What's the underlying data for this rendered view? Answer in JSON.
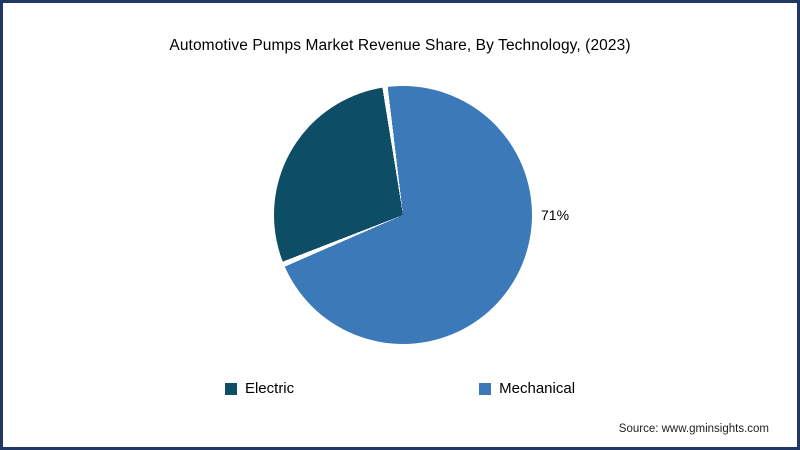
{
  "chart_data": {
    "type": "pie",
    "title": "Automotive Pumps Market Revenue Share, By Technology, (2023)",
    "start_angle_deg": -8,
    "slices": [
      {
        "label": "Mechanical",
        "value": 71,
        "color": "#3b79b8",
        "display_label": "71%"
      },
      {
        "label": "Electric",
        "value": 29,
        "color": "#0d4e66",
        "display_label": ""
      }
    ],
    "legend_position": "bottom",
    "legend_order": [
      "Electric",
      "Mechanical"
    ]
  },
  "source": {
    "text": "Source: www.gminsights.com"
  }
}
